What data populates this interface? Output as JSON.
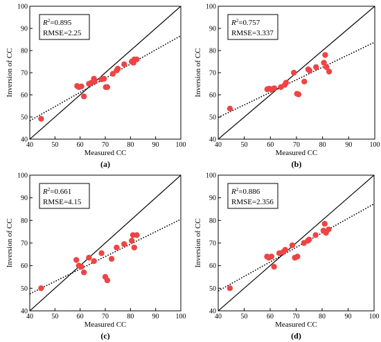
{
  "chart_data": [
    {
      "type": "scatter",
      "panel_label": "(a)",
      "xlabel": "Measured CC",
      "ylabel": "Inversion of CC",
      "xlim": [
        40,
        100
      ],
      "ylim": [
        40,
        100
      ],
      "xticks": [
        40,
        50,
        60,
        70,
        80,
        90,
        100
      ],
      "yticks": [
        40,
        50,
        60,
        70,
        80,
        90,
        100
      ],
      "stats": {
        "r2_label": "R",
        "r2_sup": "2",
        "r2_value": "=0.895",
        "rmse": "RMSE=2.25"
      },
      "fit_line": {
        "x": [
          40,
          100
        ],
        "y": [
          48.3,
          86.7
        ]
      },
      "one_to_one": true,
      "points": [
        {
          "x": 44.5,
          "y": 49.2
        },
        {
          "x": 58.8,
          "y": 64.0
        },
        {
          "x": 59.5,
          "y": 63.5
        },
        {
          "x": 60.5,
          "y": 63.8
        },
        {
          "x": 61.5,
          "y": 59.3
        },
        {
          "x": 63.5,
          "y": 65.0
        },
        {
          "x": 64.5,
          "y": 65.5
        },
        {
          "x": 65.5,
          "y": 67.3
        },
        {
          "x": 65.8,
          "y": 66.0
        },
        {
          "x": 68.5,
          "y": 67.0
        },
        {
          "x": 69.5,
          "y": 67.3
        },
        {
          "x": 70.2,
          "y": 63.5
        },
        {
          "x": 70.8,
          "y": 63.5
        },
        {
          "x": 73.0,
          "y": 69.5
        },
        {
          "x": 74.5,
          "y": 71.0
        },
        {
          "x": 75.0,
          "y": 71.8
        },
        {
          "x": 77.5,
          "y": 73.8
        },
        {
          "x": 80.5,
          "y": 75.0
        },
        {
          "x": 81.2,
          "y": 74.5
        },
        {
          "x": 81.5,
          "y": 76.0
        },
        {
          "x": 82.5,
          "y": 76.0
        }
      ]
    },
    {
      "type": "scatter",
      "panel_label": "(b)",
      "xlabel": "Measured CC",
      "ylabel": "Inversion of CC",
      "xlim": [
        40,
        100
      ],
      "ylim": [
        40,
        100
      ],
      "xticks": [
        40,
        50,
        60,
        70,
        80,
        90,
        100
      ],
      "yticks": [
        40,
        50,
        60,
        70,
        80,
        90,
        100
      ],
      "stats": {
        "r2_label": "R",
        "r2_sup": "2",
        "r2_value": "=0.757",
        "rmse": "RMSE=3.337"
      },
      "fit_line": {
        "x": [
          40,
          100
        ],
        "y": [
          49.8,
          83.8
        ]
      },
      "one_to_one": true,
      "points": [
        {
          "x": 44.5,
          "y": 53.8
        },
        {
          "x": 58.8,
          "y": 62.5
        },
        {
          "x": 59.5,
          "y": 62.8
        },
        {
          "x": 60.5,
          "y": 62.5
        },
        {
          "x": 61.5,
          "y": 63.0
        },
        {
          "x": 64.0,
          "y": 63.5
        },
        {
          "x": 65.5,
          "y": 64.5
        },
        {
          "x": 66.0,
          "y": 65.5
        },
        {
          "x": 69.0,
          "y": 70.0
        },
        {
          "x": 70.2,
          "y": 60.5
        },
        {
          "x": 70.8,
          "y": 60.2
        },
        {
          "x": 73.0,
          "y": 66.0
        },
        {
          "x": 74.5,
          "y": 71.5
        },
        {
          "x": 75.0,
          "y": 71.0
        },
        {
          "x": 77.5,
          "y": 72.5
        },
        {
          "x": 80.5,
          "y": 74.5
        },
        {
          "x": 81.0,
          "y": 78.0
        },
        {
          "x": 81.5,
          "y": 72.5
        },
        {
          "x": 82.5,
          "y": 70.5
        }
      ]
    },
    {
      "type": "scatter",
      "panel_label": "(c)",
      "xlabel": "Measured CC",
      "ylabel": "Inversion of CC",
      "xlim": [
        40,
        100
      ],
      "ylim": [
        40,
        100
      ],
      "xticks": [
        40,
        50,
        60,
        70,
        80,
        90,
        100
      ],
      "yticks": [
        40,
        50,
        60,
        70,
        80,
        90,
        100
      ],
      "stats": {
        "r2_label": "R",
        "r2_sup": "2",
        "r2_value": "=0.661",
        "rmse": "RMSE=4.15"
      },
      "fit_line": {
        "x": [
          40,
          100
        ],
        "y": [
          47.5,
          80.5
        ]
      },
      "one_to_one": true,
      "points": [
        {
          "x": 44.5,
          "y": 50.0
        },
        {
          "x": 58.5,
          "y": 62.5
        },
        {
          "x": 59.5,
          "y": 60.0
        },
        {
          "x": 60.5,
          "y": 59.5
        },
        {
          "x": 61.5,
          "y": 57.0
        },
        {
          "x": 63.5,
          "y": 63.5
        },
        {
          "x": 65.5,
          "y": 62.0
        },
        {
          "x": 68.5,
          "y": 65.5
        },
        {
          "x": 70.0,
          "y": 55.0
        },
        {
          "x": 70.8,
          "y": 53.5
        },
        {
          "x": 72.5,
          "y": 63.0
        },
        {
          "x": 74.5,
          "y": 68.0
        },
        {
          "x": 77.5,
          "y": 69.5
        },
        {
          "x": 80.5,
          "y": 71.0
        },
        {
          "x": 81.0,
          "y": 73.5
        },
        {
          "x": 81.5,
          "y": 68.0
        },
        {
          "x": 82.5,
          "y": 73.5
        }
      ]
    },
    {
      "type": "scatter",
      "panel_label": "(d)",
      "xlabel": "Measured CC",
      "ylabel": "Inversion of CC",
      "xlim": [
        40,
        100
      ],
      "ylim": [
        40,
        100
      ],
      "xticks": [
        40,
        50,
        60,
        70,
        80,
        90,
        100
      ],
      "yticks": [
        40,
        50,
        60,
        70,
        80,
        90,
        100
      ],
      "stats": {
        "r2_label": "R",
        "r2_sup": "2",
        "r2_value": "=0.886",
        "rmse": "RMSE=2.356"
      },
      "fit_line": {
        "x": [
          40,
          100
        ],
        "y": [
          48.8,
          87.3
        ]
      },
      "one_to_one": true,
      "points": [
        {
          "x": 44.5,
          "y": 50.0
        },
        {
          "x": 58.8,
          "y": 64.0
        },
        {
          "x": 59.5,
          "y": 63.5
        },
        {
          "x": 60.5,
          "y": 64.0
        },
        {
          "x": 61.5,
          "y": 59.5
        },
        {
          "x": 63.5,
          "y": 65.5
        },
        {
          "x": 65.0,
          "y": 66.0
        },
        {
          "x": 65.8,
          "y": 67.0
        },
        {
          "x": 68.5,
          "y": 69.0
        },
        {
          "x": 69.5,
          "y": 63.5
        },
        {
          "x": 70.5,
          "y": 64.0
        },
        {
          "x": 73.0,
          "y": 70.0
        },
        {
          "x": 74.5,
          "y": 71.0
        },
        {
          "x": 75.0,
          "y": 71.5
        },
        {
          "x": 77.5,
          "y": 73.5
        },
        {
          "x": 80.5,
          "y": 75.5
        },
        {
          "x": 81.0,
          "y": 78.5
        },
        {
          "x": 81.5,
          "y": 74.5
        },
        {
          "x": 82.5,
          "y": 76.0
        }
      ]
    }
  ]
}
